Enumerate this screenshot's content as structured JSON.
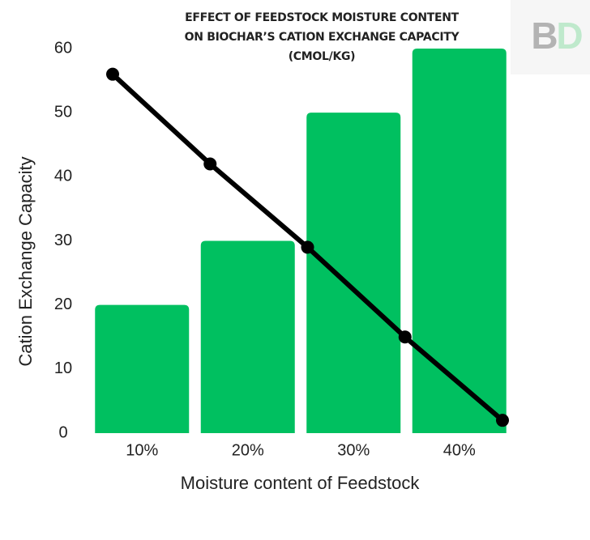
{
  "chart_data": {
    "type": "bar",
    "title": [
      "EFFECT OF FEEDSTOCK MOISTURE CONTENT",
      "ON BIOCHAR’S CATION EXCHANGE CAPACITY",
      "(CMOL/KG)"
    ],
    "watermark": [
      "B",
      "D"
    ],
    "x_label": "Moisture content of Feedstock",
    "y_label": "Cation Exchange Capacity",
    "categories": [
      "10%",
      "20%",
      "30%",
      "40%"
    ],
    "values": [
      20,
      30,
      50,
      60
    ],
    "color": "#00c060",
    "overlay": {
      "type": "line",
      "values": [
        56,
        42,
        29,
        15,
        2
      ],
      "color": "#000000"
    },
    "ylim": [
      0,
      60
    ],
    "yticks": [
      0,
      10,
      20,
      30,
      40,
      50,
      60
    ]
  }
}
